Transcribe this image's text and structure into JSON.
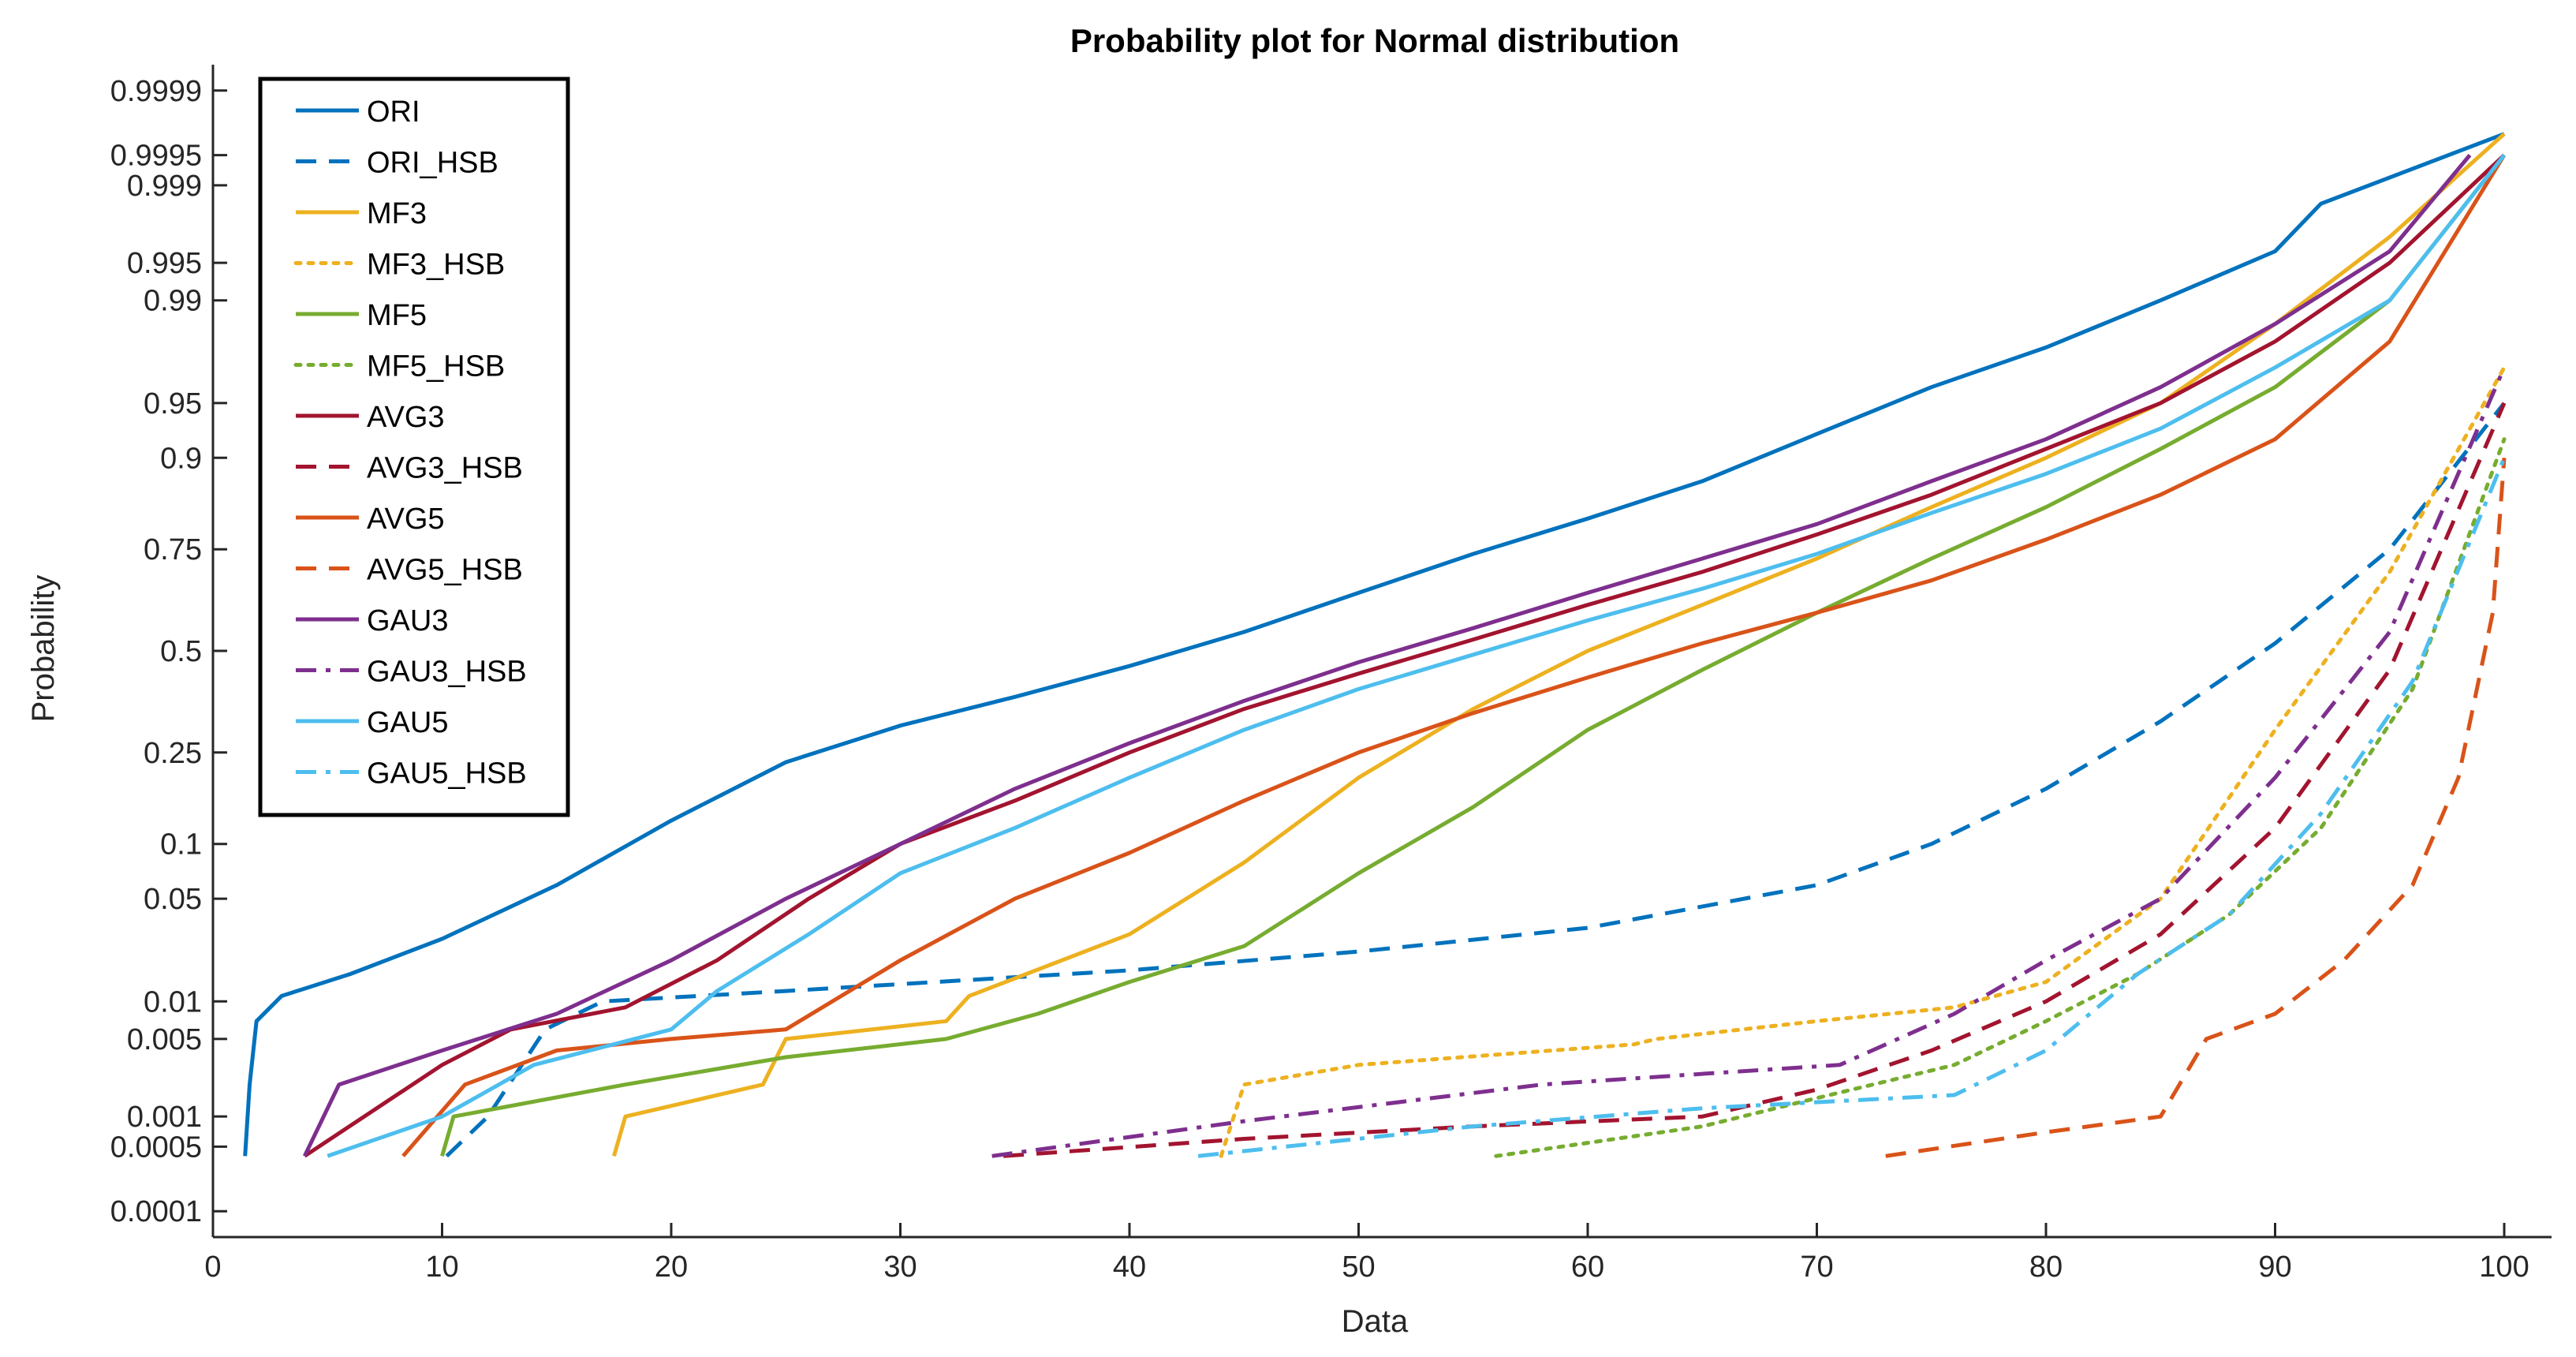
{
  "chart_data": {
    "type": "line",
    "title": "Probability plot for Normal distribution",
    "xlabel": "Data",
    "ylabel": "Probability",
    "xlim": [
      0,
      100
    ],
    "x_ticks": [
      0,
      10,
      20,
      30,
      40,
      50,
      60,
      70,
      80,
      90,
      100
    ],
    "y_scale": "normal-probability",
    "ylim": [
      5e-05,
      0.99995
    ],
    "y_ticks": [
      {
        "value": 0.0001,
        "label": "0.0001"
      },
      {
        "value": 0.0005,
        "label": "0.0005"
      },
      {
        "value": 0.001,
        "label": "0.001"
      },
      {
        "value": 0.005,
        "label": "0.005"
      },
      {
        "value": 0.01,
        "label": "0.01"
      },
      {
        "value": 0.05,
        "label": "0.05"
      },
      {
        "value": 0.1,
        "label": "0.1"
      },
      {
        "value": 0.25,
        "label": "0.25"
      },
      {
        "value": 0.5,
        "label": "0.5"
      },
      {
        "value": 0.75,
        "label": "0.75"
      },
      {
        "value": 0.9,
        "label": "0.9"
      },
      {
        "value": 0.95,
        "label": "0.95"
      },
      {
        "value": 0.99,
        "label": "0.99"
      },
      {
        "value": 0.995,
        "label": "0.995"
      },
      {
        "value": 0.999,
        "label": "0.999"
      },
      {
        "value": 0.9995,
        "label": "0.9995"
      },
      {
        "value": 0.9999,
        "label": "0.9999"
      }
    ],
    "grid": false,
    "legend_position": "top-left",
    "series": [
      {
        "name": "ORI",
        "color": "#0072BD",
        "dash": "solid",
        "points": [
          [
            1.4,
            0.0004
          ],
          [
            1.6,
            0.002
          ],
          [
            1.9,
            0.007
          ],
          [
            3,
            0.011
          ],
          [
            6,
            0.016
          ],
          [
            10,
            0.028
          ],
          [
            15,
            0.06
          ],
          [
            20,
            0.13
          ],
          [
            25,
            0.23
          ],
          [
            30,
            0.31
          ],
          [
            35,
            0.38
          ],
          [
            40,
            0.46
          ],
          [
            45,
            0.55
          ],
          [
            50,
            0.65
          ],
          [
            55,
            0.74
          ],
          [
            60,
            0.81
          ],
          [
            65,
            0.87
          ],
          [
            70,
            0.925
          ],
          [
            75,
            0.96
          ],
          [
            80,
            0.978
          ],
          [
            85,
            0.99
          ],
          [
            90,
            0.996
          ],
          [
            92,
            0.9985
          ],
          [
            100,
            0.9997
          ]
        ]
      },
      {
        "name": "ORI_HSB",
        "color": "#0072BD",
        "dash": "dashed",
        "points": [
          [
            10.2,
            0.0004
          ],
          [
            12,
            0.001
          ],
          [
            14.5,
            0.006
          ],
          [
            17,
            0.01
          ],
          [
            25,
            0.012
          ],
          [
            40,
            0.017
          ],
          [
            50,
            0.023
          ],
          [
            60,
            0.033
          ],
          [
            70,
            0.06
          ],
          [
            75,
            0.1
          ],
          [
            80,
            0.18
          ],
          [
            85,
            0.32
          ],
          [
            90,
            0.52
          ],
          [
            95,
            0.75
          ],
          [
            100,
            0.95
          ]
        ]
      },
      {
        "name": "MF3",
        "color": "#EDB120",
        "dash": "solid",
        "points": [
          [
            17.5,
            0.0004
          ],
          [
            18,
            0.001
          ],
          [
            24,
            0.002
          ],
          [
            25,
            0.005
          ],
          [
            32,
            0.007
          ],
          [
            33,
            0.011
          ],
          [
            40,
            0.03
          ],
          [
            45,
            0.08
          ],
          [
            50,
            0.2
          ],
          [
            55,
            0.35
          ],
          [
            60,
            0.5
          ],
          [
            65,
            0.62
          ],
          [
            70,
            0.73
          ],
          [
            75,
            0.83
          ],
          [
            80,
            0.9
          ],
          [
            85,
            0.95
          ],
          [
            90,
            0.985
          ],
          [
            95,
            0.997
          ],
          [
            100,
            0.9997
          ]
        ]
      },
      {
        "name": "MF3_HSB",
        "color": "#EDB120",
        "dash": "dotted",
        "points": [
          [
            44,
            0.0004
          ],
          [
            45,
            0.002
          ],
          [
            50,
            0.003
          ],
          [
            62,
            0.0045
          ],
          [
            63,
            0.005
          ],
          [
            70,
            0.007
          ],
          [
            76,
            0.009
          ],
          [
            80,
            0.014
          ],
          [
            85,
            0.05
          ],
          [
            90,
            0.3
          ],
          [
            95,
            0.7
          ],
          [
            100,
            0.97
          ]
        ]
      },
      {
        "name": "MF5",
        "color": "#77AC30",
        "dash": "solid",
        "points": [
          [
            10,
            0.0004
          ],
          [
            10.5,
            0.001
          ],
          [
            18,
            0.002
          ],
          [
            25,
            0.0035
          ],
          [
            32,
            0.005
          ],
          [
            36,
            0.008
          ],
          [
            40,
            0.014
          ],
          [
            45,
            0.025
          ],
          [
            50,
            0.07
          ],
          [
            55,
            0.15
          ],
          [
            60,
            0.3
          ],
          [
            65,
            0.45
          ],
          [
            70,
            0.6
          ],
          [
            75,
            0.73
          ],
          [
            80,
            0.83
          ],
          [
            85,
            0.91
          ],
          [
            90,
            0.96
          ],
          [
            95,
            0.99
          ],
          [
            100,
            0.9995
          ]
        ]
      },
      {
        "name": "MF5_HSB",
        "color": "#77AC30",
        "dash": "dotted",
        "points": [
          [
            56,
            0.0004
          ],
          [
            65,
            0.0008
          ],
          [
            70,
            0.0015
          ],
          [
            76,
            0.003
          ],
          [
            80,
            0.007
          ],
          [
            84,
            0.016
          ],
          [
            88,
            0.04
          ],
          [
            92,
            0.12
          ],
          [
            96,
            0.4
          ],
          [
            100,
            0.92
          ]
        ]
      },
      {
        "name": "AVG3",
        "color": "#A2142F",
        "dash": "solid",
        "points": [
          [
            4,
            0.0004
          ],
          [
            10,
            0.003
          ],
          [
            13,
            0.006
          ],
          [
            18,
            0.009
          ],
          [
            22,
            0.02
          ],
          [
            26,
            0.05
          ],
          [
            30,
            0.1
          ],
          [
            35,
            0.16
          ],
          [
            40,
            0.25
          ],
          [
            45,
            0.35
          ],
          [
            50,
            0.44
          ],
          [
            55,
            0.53
          ],
          [
            60,
            0.62
          ],
          [
            65,
            0.7
          ],
          [
            70,
            0.78
          ],
          [
            75,
            0.85
          ],
          [
            80,
            0.91
          ],
          [
            85,
            0.95
          ],
          [
            90,
            0.98
          ],
          [
            95,
            0.995
          ],
          [
            100,
            0.9995
          ]
        ]
      },
      {
        "name": "AVG3_HSB",
        "color": "#A2142F",
        "dash": "dashed",
        "points": [
          [
            34.5,
            0.0004
          ],
          [
            45,
            0.0006
          ],
          [
            55,
            0.0008
          ],
          [
            65,
            0.001
          ],
          [
            70,
            0.0018
          ],
          [
            75,
            0.004
          ],
          [
            80,
            0.01
          ],
          [
            85,
            0.03
          ],
          [
            90,
            0.12
          ],
          [
            95,
            0.45
          ],
          [
            100,
            0.95
          ]
        ]
      },
      {
        "name": "AVG5",
        "color": "#D95319",
        "dash": "solid",
        "points": [
          [
            8.3,
            0.0004
          ],
          [
            11,
            0.002
          ],
          [
            15,
            0.004
          ],
          [
            20,
            0.005
          ],
          [
            25,
            0.006
          ],
          [
            30,
            0.02
          ],
          [
            35,
            0.05
          ],
          [
            40,
            0.09
          ],
          [
            45,
            0.16
          ],
          [
            50,
            0.25
          ],
          [
            55,
            0.34
          ],
          [
            60,
            0.43
          ],
          [
            65,
            0.52
          ],
          [
            70,
            0.6
          ],
          [
            75,
            0.68
          ],
          [
            80,
            0.77
          ],
          [
            85,
            0.85
          ],
          [
            90,
            0.92
          ],
          [
            95,
            0.98
          ],
          [
            100,
            0.9995
          ]
        ]
      },
      {
        "name": "AVG5_HSB",
        "color": "#D95319",
        "dash": "dashed",
        "points": [
          [
            73,
            0.0004
          ],
          [
            80,
            0.0007
          ],
          [
            85,
            0.001
          ],
          [
            87,
            0.005
          ],
          [
            90,
            0.008
          ],
          [
            93,
            0.02
          ],
          [
            96,
            0.06
          ],
          [
            98,
            0.2
          ],
          [
            99.5,
            0.6
          ],
          [
            100,
            0.9
          ]
        ]
      },
      {
        "name": "GAU3",
        "color": "#7E2F8E",
        "dash": "solid",
        "points": [
          [
            4,
            0.0004
          ],
          [
            5.5,
            0.002
          ],
          [
            10,
            0.004
          ],
          [
            15,
            0.008
          ],
          [
            20,
            0.02
          ],
          [
            25,
            0.05
          ],
          [
            30,
            0.1
          ],
          [
            35,
            0.18
          ],
          [
            40,
            0.27
          ],
          [
            45,
            0.37
          ],
          [
            50,
            0.47
          ],
          [
            55,
            0.56
          ],
          [
            60,
            0.65
          ],
          [
            65,
            0.73
          ],
          [
            70,
            0.8
          ],
          [
            75,
            0.87
          ],
          [
            80,
            0.92
          ],
          [
            85,
            0.96
          ],
          [
            90,
            0.985
          ],
          [
            95,
            0.996
          ],
          [
            98.5,
            0.9995
          ]
        ]
      },
      {
        "name": "GAU3_HSB",
        "color": "#7E2F8E",
        "dash": "dashdot",
        "points": [
          [
            34,
            0.0004
          ],
          [
            45,
            0.0009
          ],
          [
            58,
            0.002
          ],
          [
            65,
            0.0025
          ],
          [
            71,
            0.003
          ],
          [
            76,
            0.008
          ],
          [
            80,
            0.02
          ],
          [
            85,
            0.05
          ],
          [
            90,
            0.2
          ],
          [
            95,
            0.55
          ],
          [
            100,
            0.97
          ]
        ]
      },
      {
        "name": "GAU5",
        "color": "#4DBEEE",
        "dash": "solid",
        "points": [
          [
            5,
            0.0004
          ],
          [
            10,
            0.001
          ],
          [
            14,
            0.003
          ],
          [
            20,
            0.006
          ],
          [
            22,
            0.012
          ],
          [
            26,
            0.03
          ],
          [
            30,
            0.07
          ],
          [
            35,
            0.12
          ],
          [
            40,
            0.2
          ],
          [
            45,
            0.3
          ],
          [
            50,
            0.4
          ],
          [
            55,
            0.49
          ],
          [
            60,
            0.58
          ],
          [
            65,
            0.66
          ],
          [
            70,
            0.74
          ],
          [
            75,
            0.82
          ],
          [
            80,
            0.88
          ],
          [
            85,
            0.93
          ],
          [
            90,
            0.97
          ],
          [
            95,
            0.99
          ],
          [
            100,
            0.9995
          ]
        ]
      },
      {
        "name": "GAU5_HSB",
        "color": "#4DBEEE",
        "dash": "dashdot",
        "points": [
          [
            43,
            0.0004
          ],
          [
            55,
            0.0008
          ],
          [
            65,
            0.0012
          ],
          [
            76,
            0.0016
          ],
          [
            80,
            0.004
          ],
          [
            84,
            0.016
          ],
          [
            88,
            0.04
          ],
          [
            92,
            0.14
          ],
          [
            96,
            0.42
          ],
          [
            100,
            0.9
          ]
        ]
      }
    ]
  }
}
